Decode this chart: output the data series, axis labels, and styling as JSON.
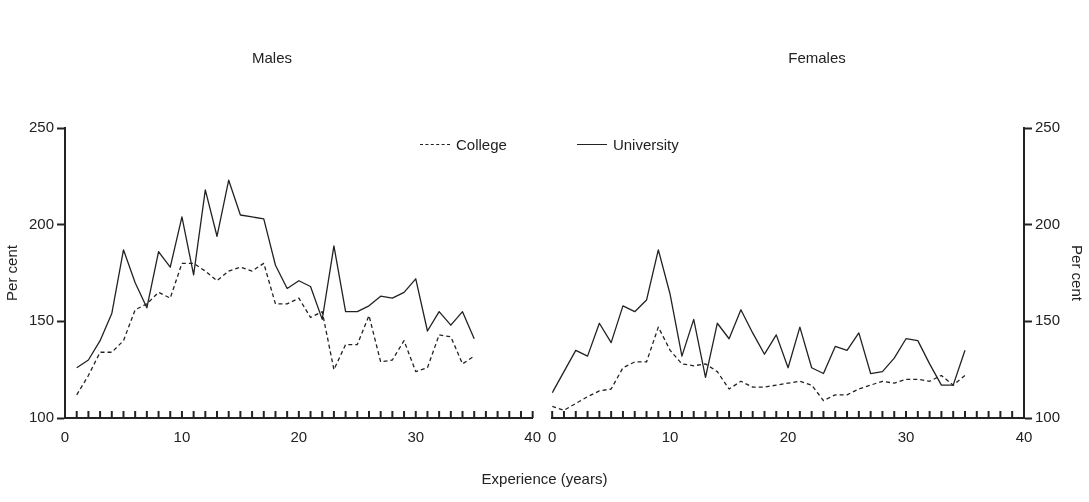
{
  "chart_data": [
    {
      "type": "line",
      "title": "Males",
      "xlabel": "Experience (years)",
      "ylabel": "Per cent",
      "legend": "top right",
      "xlim": [
        0,
        40
      ],
      "ylim": [
        100,
        250
      ],
      "yticks": [
        100,
        150,
        200,
        250
      ],
      "xticks": [
        0,
        {
          "value": 1,
          "label": null
        },
        {
          "value": 2,
          "label": null
        },
        {
          "value": 3,
          "label": null
        },
        {
          "value": 4,
          "label": null
        },
        {
          "value": 5,
          "label": null
        },
        {
          "value": 6,
          "label": null
        },
        {
          "value": 7,
          "label": null
        },
        {
          "value": 8,
          "label": null
        },
        {
          "value": 9,
          "label": null
        },
        10,
        {
          "value": 11,
          "label": null
        },
        {
          "value": 12,
          "label": null
        },
        {
          "value": 13,
          "label": null
        },
        {
          "value": 14,
          "label": null
        },
        {
          "value": 15,
          "label": null
        },
        {
          "value": 16,
          "label": null
        },
        {
          "value": 17,
          "label": null
        },
        {
          "value": 18,
          "label": null
        },
        {
          "value": 19,
          "label": null
        },
        20,
        {
          "value": 21,
          "label": null
        },
        {
          "value": 22,
          "label": null
        },
        {
          "value": 23,
          "label": null
        },
        {
          "value": 24,
          "label": null
        },
        {
          "value": 25,
          "label": null
        },
        {
          "value": 26,
          "label": null
        },
        {
          "value": 27,
          "label": null
        },
        {
          "value": 28,
          "label": null
        },
        {
          "value": 29,
          "label": null
        },
        30,
        {
          "value": 31,
          "label": null
        },
        {
          "value": 32,
          "label": null
        },
        {
          "value": 33,
          "label": null
        },
        {
          "value": 34,
          "label": null
        },
        {
          "value": 35,
          "label": null
        },
        {
          "value": 36,
          "label": null
        },
        {
          "value": 37,
          "label": null
        },
        {
          "value": 38,
          "label": null
        },
        {
          "value": 39,
          "label": null
        },
        40
      ],
      "series": [
        {
          "name": "College",
          "color": "#222222",
          "line_style": "dashed",
          "x": [
            1,
            2,
            3,
            4,
            5,
            6,
            7,
            8,
            9,
            10,
            11,
            12,
            13,
            14,
            15,
            16,
            17,
            18,
            19,
            20,
            21,
            22,
            23,
            24,
            25,
            26,
            27,
            28,
            29,
            30,
            31,
            32,
            33,
            34,
            35
          ],
          "values": [
            112,
            122,
            134,
            134,
            140,
            156,
            159,
            165,
            162,
            180,
            180,
            176,
            171,
            176,
            178,
            176,
            180,
            159,
            159,
            162,
            152,
            155,
            125,
            138,
            138,
            153,
            129,
            130,
            140,
            124,
            126,
            143,
            142,
            128,
            132
          ]
        },
        {
          "name": "University",
          "color": "#222222",
          "line_style": "solid",
          "x": [
            1,
            2,
            3,
            4,
            5,
            6,
            7,
            8,
            9,
            10,
            11,
            12,
            13,
            14,
            15,
            16,
            17,
            18,
            19,
            20,
            21,
            22,
            23,
            24,
            25,
            26,
            27,
            28,
            29,
            30,
            31,
            32,
            33,
            34,
            35
          ],
          "values": [
            126,
            130,
            140,
            154,
            187,
            170,
            157,
            186,
            178,
            204,
            174,
            218,
            194,
            223,
            205,
            204,
            203,
            179,
            167,
            171,
            168,
            151,
            189,
            155,
            155,
            158,
            163,
            162,
            165,
            172,
            145,
            155,
            148,
            155,
            141
          ]
        }
      ]
    },
    {
      "type": "line",
      "title": "Females",
      "y2label": "Per cent",
      "xlim": [
        0,
        40
      ],
      "y2lim": [
        100,
        250
      ],
      "y2ticks": [
        100,
        150,
        200,
        250
      ],
      "xticks": [
        0,
        {
          "value": 1,
          "label": null
        },
        {
          "value": 2,
          "label": null
        },
        {
          "value": 3,
          "label": null
        },
        {
          "value": 4,
          "label": null
        },
        {
          "value": 5,
          "label": null
        },
        {
          "value": 6,
          "label": null
        },
        {
          "value": 7,
          "label": null
        },
        {
          "value": 8,
          "label": null
        },
        {
          "value": 9,
          "label": null
        },
        10,
        {
          "value": 11,
          "label": null
        },
        {
          "value": 12,
          "label": null
        },
        {
          "value": 13,
          "label": null
        },
        {
          "value": 14,
          "label": null
        },
        {
          "value": 15,
          "label": null
        },
        {
          "value": 16,
          "label": null
        },
        {
          "value": 17,
          "label": null
        },
        {
          "value": 18,
          "label": null
        },
        {
          "value": 19,
          "label": null
        },
        20,
        {
          "value": 21,
          "label": null
        },
        {
          "value": 22,
          "label": null
        },
        {
          "value": 23,
          "label": null
        },
        {
          "value": 24,
          "label": null
        },
        {
          "value": 25,
          "label": null
        },
        {
          "value": 26,
          "label": null
        },
        {
          "value": 27,
          "label": null
        },
        {
          "value": 28,
          "label": null
        },
        {
          "value": 29,
          "label": null
        },
        30,
        {
          "value": 31,
          "label": null
        },
        {
          "value": 32,
          "label": null
        },
        {
          "value": 33,
          "label": null
        },
        {
          "value": 34,
          "label": null
        },
        {
          "value": 35,
          "label": null
        },
        {
          "value": 36,
          "label": null
        },
        {
          "value": 37,
          "label": null
        },
        {
          "value": 38,
          "label": null
        },
        {
          "value": 39,
          "label": null
        },
        40
      ],
      "series": [
        {
          "color": "#222222",
          "line_style": "dashed",
          "axis": "y2",
          "x": [
            0,
            1,
            3,
            4,
            5,
            6,
            7,
            8,
            9,
            10,
            11,
            12,
            13,
            14,
            15,
            16,
            17,
            18,
            19,
            20,
            21,
            22,
            23,
            24,
            25,
            26,
            27,
            28,
            29,
            30,
            31,
            32,
            33,
            34,
            35
          ],
          "values": [
            106,
            104,
            111,
            114,
            115,
            126,
            129,
            129,
            147,
            135,
            128,
            127,
            128,
            124,
            115,
            119,
            116,
            116,
            117,
            118,
            119,
            117,
            109,
            112,
            112,
            115,
            117,
            119,
            118,
            120,
            120,
            119,
            122,
            117,
            122
          ]
        },
        {
          "color": "#222222",
          "line_style": "solid",
          "axis": "y2",
          "x": [
            0,
            2,
            3,
            4,
            5,
            6,
            7,
            8,
            9,
            10,
            11,
            12,
            13,
            14,
            15,
            16,
            17,
            18,
            19,
            20,
            21,
            22,
            23,
            24,
            25,
            26,
            27,
            28,
            29,
            30,
            31,
            32,
            33,
            34,
            35
          ],
          "values": [
            113,
            135,
            132,
            149,
            139,
            158,
            155,
            161,
            187,
            164,
            132,
            151,
            121,
            149,
            141,
            156,
            144,
            133,
            143,
            126,
            147,
            126,
            123,
            137,
            135,
            144,
            123,
            124,
            131,
            141,
            140,
            128,
            117,
            117,
            135
          ]
        }
      ]
    }
  ]
}
